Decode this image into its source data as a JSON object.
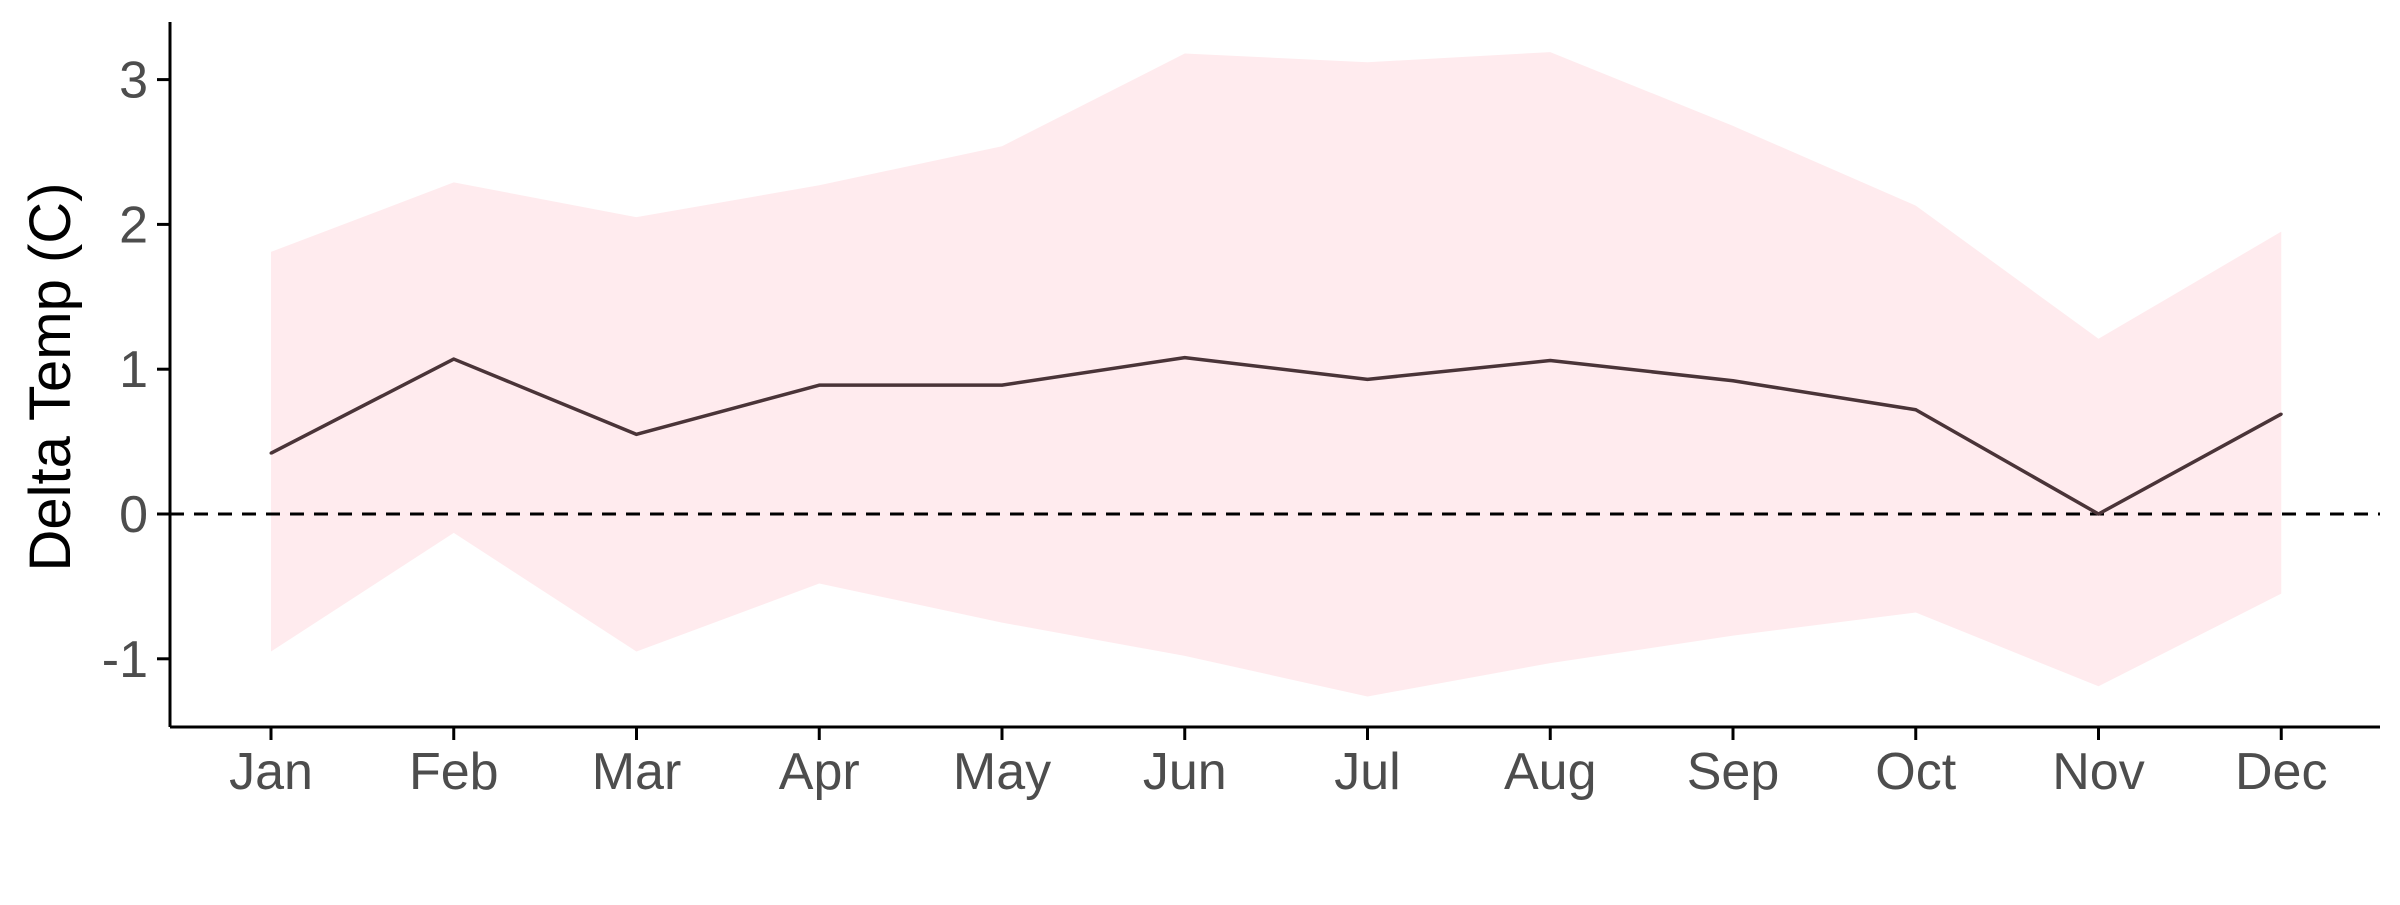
{
  "chart_data": {
    "type": "area",
    "title": "",
    "xlabel": "",
    "ylabel": "Delta Temp (C)",
    "categories": [
      "Jan",
      "Feb",
      "Mar",
      "Apr",
      "May",
      "Jun",
      "Jul",
      "Aug",
      "Sep",
      "Oct",
      "Nov",
      "Dec"
    ],
    "series": [
      {
        "values": [
          0.42,
          1.07,
          0.55,
          0.89,
          0.89,
          1.08,
          0.93,
          1.06,
          0.92,
          0.72,
          0.0,
          0.69
        ]
      }
    ],
    "band": {
      "lower": [
        -0.95,
        -0.13,
        -0.95,
        -0.48,
        -0.75,
        -0.98,
        -1.26,
        -1.03,
        -0.84,
        -0.68,
        -1.19,
        -0.55
      ],
      "upper": [
        1.81,
        2.29,
        2.05,
        2.27,
        2.54,
        3.18,
        3.12,
        3.19,
        2.68,
        2.13,
        1.21,
        1.95
      ]
    },
    "reference_line": {
      "y": 0,
      "style": "dashed"
    },
    "ylim": [
      -1.5,
      3.4
    ],
    "yticks": [
      -1,
      0,
      1,
      2,
      3
    ],
    "grid": false,
    "legend": "none",
    "colors": {
      "line": "#4a3438",
      "band": "#ffebee",
      "reference": "#000000",
      "axis": "#000000",
      "tick_label": "#4d4d4d",
      "axis_title": "#000000"
    }
  }
}
